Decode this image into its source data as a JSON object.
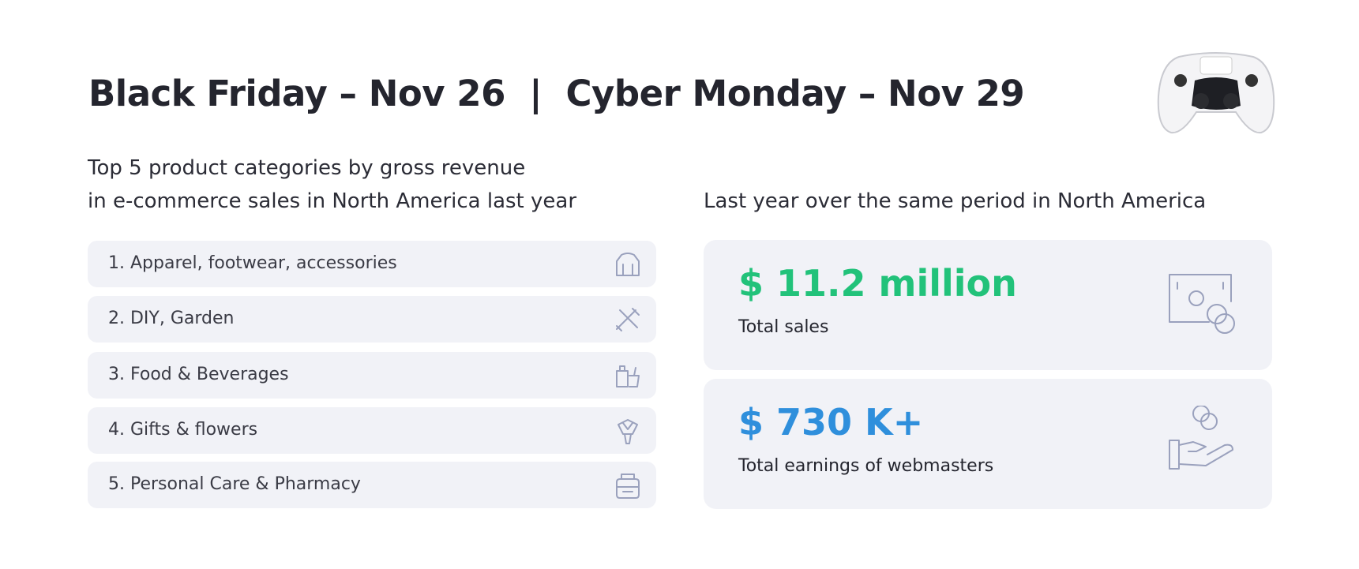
{
  "header": {
    "title": "Black Friday – Nov 26  |  Cyber Monday – Nov 29"
  },
  "left": {
    "subtitle": [
      "Top 5 product categories by gross revenue",
      "in e-commerce sales in North America last year"
    ],
    "items": [
      "1. Apparel, footwear, accessories",
      "2. DIY, Garden",
      "3. Food & Beverages",
      "4. Gifts & flowers",
      "5. Personal Care & Pharmacy"
    ]
  },
  "right": {
    "subtitle": "Last year over the same period in North America",
    "cards": [
      {
        "value": "$ 11.2 million",
        "label": "Total sales"
      },
      {
        "value": "$ 730 K+",
        "label": "Total earnings of webmasters"
      }
    ]
  }
}
